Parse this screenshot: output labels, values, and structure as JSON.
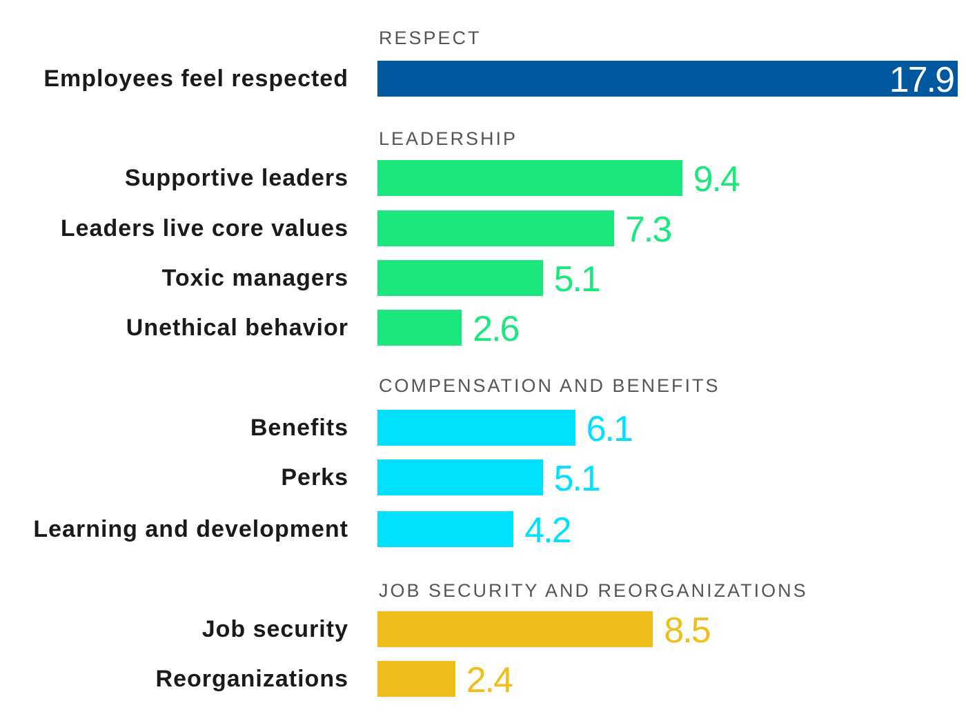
{
  "chart_data": {
    "type": "bar",
    "orientation": "horizontal",
    "title": "",
    "xlabel": "",
    "ylabel": "",
    "xlim": [
      0,
      17.9
    ],
    "grid": false,
    "groups": [
      {
        "title": "RESPECT",
        "color": "#00589e",
        "label_inside": true,
        "items": [
          {
            "label": "Employees feel respected",
            "value": 17.9,
            "value_label": "17.9"
          }
        ]
      },
      {
        "title": "LEADERSHIP",
        "color": "#1ae87c",
        "items": [
          {
            "label": "Supportive leaders",
            "value": 9.4,
            "value_label": "9.4"
          },
          {
            "label": "Leaders live core values",
            "value": 7.3,
            "value_label": "7.3"
          },
          {
            "label": "Toxic managers",
            "value": 5.1,
            "value_label": "5.1"
          },
          {
            "label": "Unethical behavior",
            "value": 2.6,
            "value_label": "2.6"
          }
        ]
      },
      {
        "title": "COMPENSATION AND BENEFITS",
        "color": "#00e1ff",
        "items": [
          {
            "label": "Benefits",
            "value": 6.1,
            "value_label": "6.1"
          },
          {
            "label": "Perks",
            "value": 5.1,
            "value_label": "5.1"
          },
          {
            "label": "Learning and development",
            "value": 4.2,
            "value_label": "4.2"
          }
        ]
      },
      {
        "title": "JOB SECURITY AND REORGANIZATIONS",
        "color": "#f0be1a",
        "items": [
          {
            "label": "Job security",
            "value": 8.5,
            "value_label": "8.5"
          },
          {
            "label": "Reorganizations",
            "value": 2.4,
            "value_label": "2.4"
          }
        ]
      }
    ]
  }
}
